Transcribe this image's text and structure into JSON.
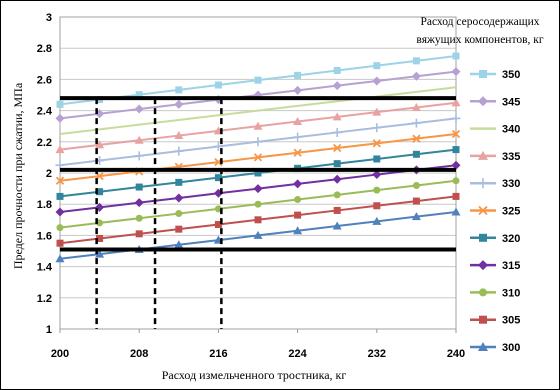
{
  "chart_data": {
    "type": "line",
    "title": "",
    "xlabel": "Расход измельченного тростника, кг",
    "ylabel": "Предел прочности при сжатии, МПа",
    "legend_title_lines": [
      "Расход серосодержащих",
      "вяжущих компонентов, кг"
    ],
    "xlim": [
      200,
      240
    ],
    "ylim": [
      1,
      3
    ],
    "x_ticks": [
      "200",
      "208",
      "216",
      "224",
      "232",
      "240"
    ],
    "y_ticks": [
      "1",
      "1.2",
      "1.4",
      "1.6",
      "1.8",
      "2",
      "2.2",
      "2.4",
      "2.6",
      "2.8",
      "3"
    ],
    "grid": true,
    "legend_position": "right",
    "x": [
      200,
      204,
      208,
      212,
      216,
      220,
      224,
      228,
      232,
      236,
      240
    ],
    "series": [
      {
        "name": "350",
        "color": "#9dd3e6",
        "marker": "square",
        "start": 2.44,
        "end": 2.75
      },
      {
        "name": "345",
        "color": "#b6a1d2",
        "marker": "diamond",
        "start": 2.35,
        "end": 2.65
      },
      {
        "name": "340",
        "color": "#c6dd9a",
        "marker": "none",
        "start": 2.25,
        "end": 2.55
      },
      {
        "name": "335",
        "color": "#e8a2a2",
        "marker": "triangle",
        "start": 2.15,
        "end": 2.45
      },
      {
        "name": "330",
        "color": "#a9bde0",
        "marker": "plus",
        "start": 2.05,
        "end": 2.35
      },
      {
        "name": "325",
        "color": "#f79646",
        "marker": "x",
        "start": 1.95,
        "end": 2.25
      },
      {
        "name": "320",
        "color": "#31859c",
        "marker": "square",
        "start": 1.85,
        "end": 2.15
      },
      {
        "name": "315",
        "color": "#7030a0",
        "marker": "diamond",
        "start": 1.75,
        "end": 2.05
      },
      {
        "name": "310",
        "color": "#9bbb59",
        "marker": "circle",
        "start": 1.65,
        "end": 1.95
      },
      {
        "name": "305",
        "color": "#c0504d",
        "marker": "square",
        "start": 1.55,
        "end": 1.85
      },
      {
        "name": "300",
        "color": "#4f81bd",
        "marker": "triangle",
        "start": 1.45,
        "end": 1.75
      }
    ],
    "reference_lines_y": [
      2.48,
      2.02,
      1.51
    ],
    "dashed_lines_x": [
      203.7,
      209.6,
      216.3
    ]
  }
}
